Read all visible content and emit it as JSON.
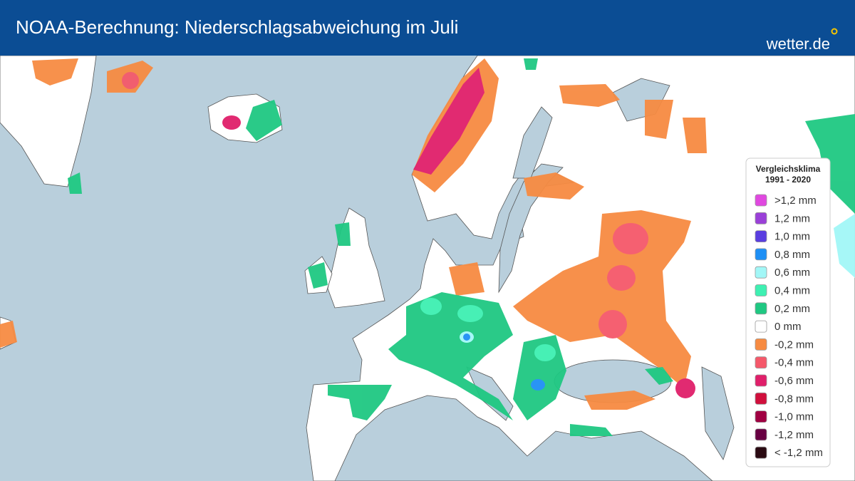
{
  "header": {
    "title": "NOAA-Berechnung: Niederschlagsabweichung im Juli",
    "logo": "wetter.de"
  },
  "legend": {
    "title": [
      "Vergleichsklima",
      "1991 - 2020"
    ],
    "items": [
      {
        "label": ">1,2 mm",
        "color": "#e048e0"
      },
      {
        "label": "1,2 mm",
        "color": "#9a40d8"
      },
      {
        "label": "1,0 mm",
        "color": "#5a3ee0"
      },
      {
        "label": "0,8 mm",
        "color": "#1e8ff5"
      },
      {
        "label": "0,6 mm",
        "color": "#a2f7f7"
      },
      {
        "label": "0,4 mm",
        "color": "#3ef0b2"
      },
      {
        "label": "0,2 mm",
        "color": "#1fc882"
      },
      {
        "label": "0 mm",
        "color": "#ffffff"
      },
      {
        "label": "-0,2 mm",
        "color": "#f78b42"
      },
      {
        "label": "-0,4 mm",
        "color": "#f5586a"
      },
      {
        "label": "-0,6 mm",
        "color": "#e01f6a"
      },
      {
        "label": "-0,8 mm",
        "color": "#d00f3c"
      },
      {
        "label": "-1,0 mm",
        "color": "#a00042"
      },
      {
        "label": "-1,2 mm",
        "color": "#680042"
      },
      {
        "label": "< -1,2 mm",
        "color": "#2a0a12"
      }
    ]
  }
}
